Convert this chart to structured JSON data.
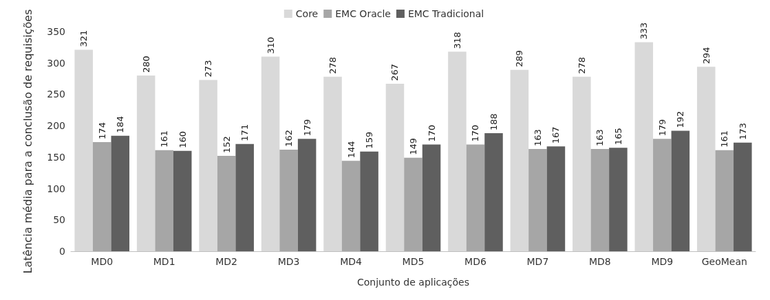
{
  "chart_data": {
    "type": "bar",
    "xlabel": "Conjunto de aplicações",
    "ylabel": "Latência média para a conclusão de requisições",
    "categories": [
      "MD0",
      "MD1",
      "MD2",
      "MD3",
      "MD4",
      "MD5",
      "MD6",
      "MD7",
      "MD8",
      "MD9",
      "GeoMean"
    ],
    "series": [
      {
        "name": "Core",
        "color": "#d9d9d9",
        "values": [
          321,
          280,
          273,
          310,
          278,
          267,
          318,
          289,
          278,
          333,
          294
        ]
      },
      {
        "name": "EMC Oracle",
        "color": "#a6a6a6",
        "values": [
          174,
          161,
          152,
          162,
          144,
          149,
          170,
          163,
          163,
          179,
          161
        ]
      },
      {
        "name": "EMC Tradicional",
        "color": "#5f5f5f",
        "values": [
          184,
          160,
          171,
          179,
          159,
          170,
          188,
          167,
          165,
          192,
          173
        ]
      }
    ],
    "ylim": [
      0,
      350
    ],
    "yticks": [
      0,
      50,
      100,
      150,
      200,
      250,
      300,
      350
    ],
    "data_labels": true,
    "legend": "top",
    "grid": false
  }
}
